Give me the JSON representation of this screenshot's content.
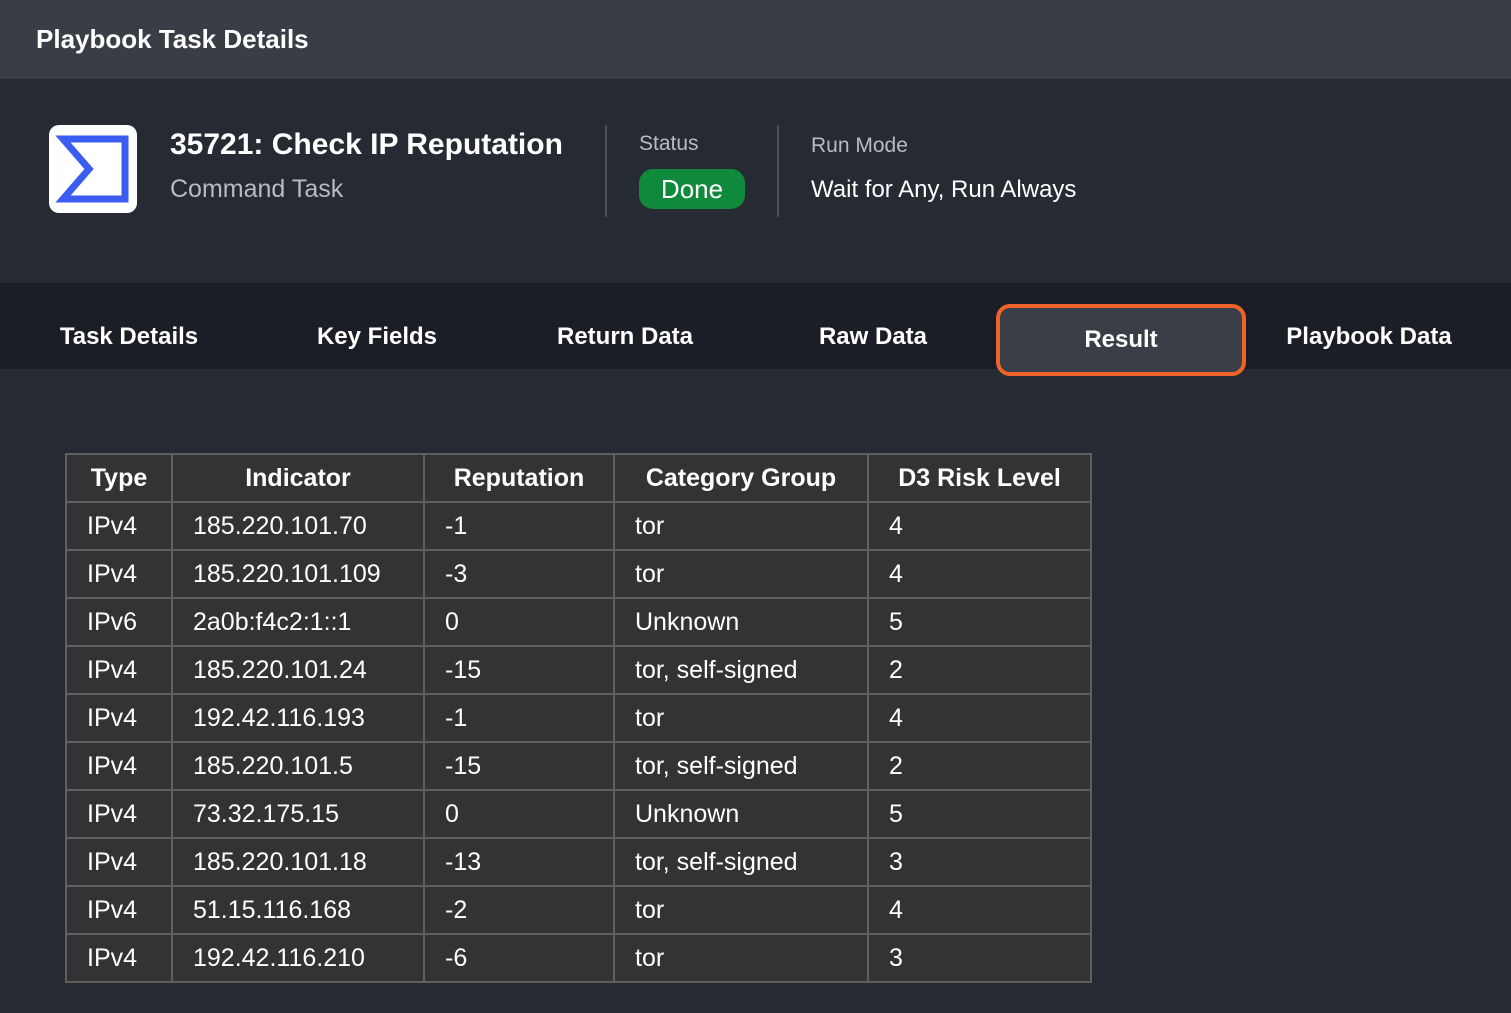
{
  "window_title": "Playbook Task Details",
  "task": {
    "title": "35721: Check IP Reputation",
    "subtitle": "Command Task",
    "icon": "sigma-icon",
    "status_label": "Status",
    "status": "Done",
    "status_color": "#0f8a3c",
    "run_mode_label": "Run Mode",
    "run_mode": "Wait for Any, Run Always"
  },
  "tabs": [
    {
      "label": "Task Details"
    },
    {
      "label": "Key Fields"
    },
    {
      "label": "Return Data"
    },
    {
      "label": "Raw Data"
    },
    {
      "label": "Result",
      "active": true
    },
    {
      "label": "Playbook Data"
    }
  ],
  "accent": "#f0642a",
  "table": {
    "headers": [
      "Type",
      "Indicator",
      "Reputation",
      "Category Group",
      "D3 Risk Level"
    ],
    "rows": [
      [
        "IPv4",
        "185.220.101.70",
        "-1",
        "tor",
        "4"
      ],
      [
        "IPv4",
        "185.220.101.109",
        "-3",
        "tor",
        "4"
      ],
      [
        "IPv6",
        "2a0b:f4c2:1::1",
        "0",
        "Unknown",
        "5"
      ],
      [
        "IPv4",
        "185.220.101.24",
        "-15",
        "tor, self-signed",
        "2"
      ],
      [
        "IPv4",
        "192.42.116.193",
        "-1",
        "tor",
        "4"
      ],
      [
        "IPv4",
        "185.220.101.5",
        "-15",
        "tor, self-signed",
        "2"
      ],
      [
        "IPv4",
        "73.32.175.15",
        "0",
        "Unknown",
        "5"
      ],
      [
        "IPv4",
        "185.220.101.18",
        "-13",
        "tor, self-signed",
        "3"
      ],
      [
        "IPv4",
        "51.15.116.168",
        "-2",
        "tor",
        "4"
      ],
      [
        "IPv4",
        "192.42.116.210",
        "-6",
        "tor",
        "3"
      ]
    ]
  }
}
